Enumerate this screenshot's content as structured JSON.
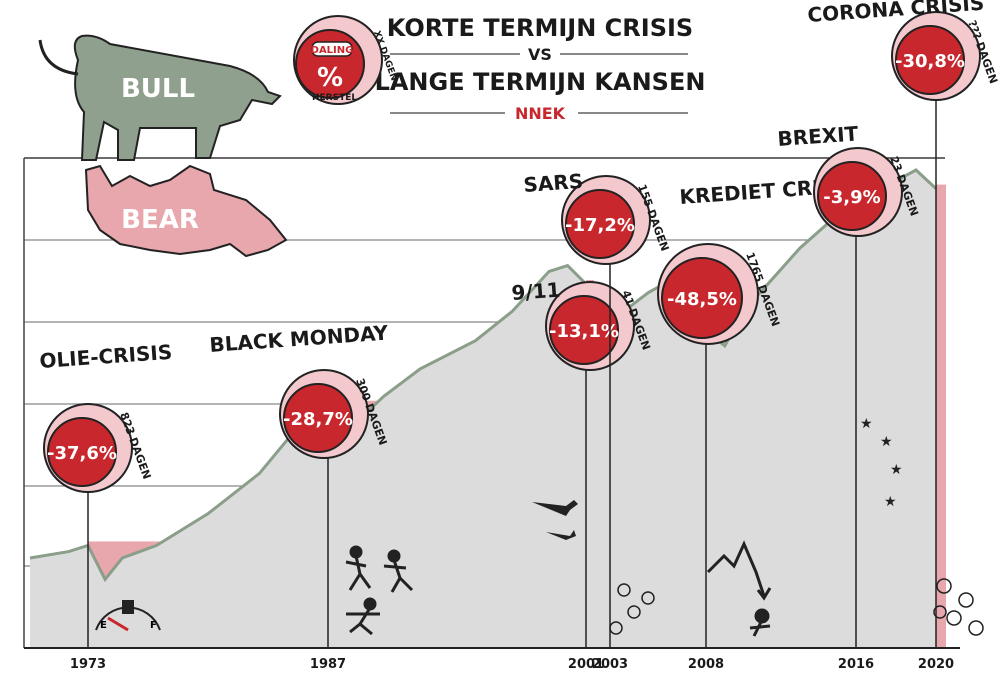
{
  "header": {
    "title_line1": "KORTE TERMIJN CRISIS",
    "vs": "VS",
    "title_line2": "LANGE TERMIJN KANSEN",
    "brand": "NNEK",
    "legend_badge": {
      "top": "DALING",
      "symbol": "%",
      "days": "XX DAGEN",
      "recovery": "HERSTEL"
    }
  },
  "mascots": {
    "bull": "BULL",
    "bear": "BEAR"
  },
  "colors": {
    "accent": "#c8282d",
    "shade": "#e8a6ad",
    "line": "#8a9e8a",
    "area": "#dcdcdc",
    "badge_ring": "#f3c9cd"
  },
  "chart_data": {
    "type": "area",
    "title": "",
    "xlabel": "",
    "ylabel": "",
    "grid": true,
    "x_ticks": [
      "1973",
      "1987",
      "2001",
      "2003",
      "2008",
      "2016",
      "2020"
    ],
    "x": [
      1970,
      1972,
      1973,
      1974,
      1975,
      1977,
      1980,
      1983,
      1985,
      1987,
      1988,
      1990,
      1992,
      1995,
      1997,
      1999,
      2000,
      2001,
      2002,
      2003,
      2005,
      2007,
      2008,
      2009,
      2010,
      2013,
      2015,
      2016,
      2018,
      2019,
      2020
    ],
    "y": [
      1.0,
      1.05,
      1.1,
      0.85,
      1.0,
      1.1,
      1.4,
      1.9,
      2.6,
      3.2,
      2.6,
      3.4,
      4.2,
      5.2,
      6.5,
      8.8,
      9.2,
      8.0,
      6.5,
      6.0,
      7.5,
      8.8,
      5.6,
      5.0,
      6.5,
      10.5,
      13.5,
      13.0,
      17.5,
      19.0,
      16.5
    ],
    "crises": [
      {
        "name": "OLIE-CRISIS",
        "start_year": "1973",
        "drop": "-37,6%",
        "recovery_days": "823"
      },
      {
        "name": "BLACK MONDAY",
        "start_year": "1987",
        "drop": "-28,7%",
        "recovery_days": "300"
      },
      {
        "name": "9/11",
        "start_year": "2001",
        "drop": "-13,1%",
        "recovery_days": "41"
      },
      {
        "name": "SARS",
        "start_year": "2003",
        "drop": "-17,2%",
        "recovery_days": "155"
      },
      {
        "name": "KREDIET CRISIS",
        "start_year": "2008",
        "drop": "-48,5%",
        "recovery_days": "1765"
      },
      {
        "name": "BREXIT",
        "start_year": "2016",
        "drop": "-3,9%",
        "recovery_days": "23"
      },
      {
        "name": "CORONA CRISIS",
        "start_year": "2020",
        "drop": "-30,8%",
        "recovery_days": "???"
      }
    ],
    "days_unit": "DAGEN"
  }
}
